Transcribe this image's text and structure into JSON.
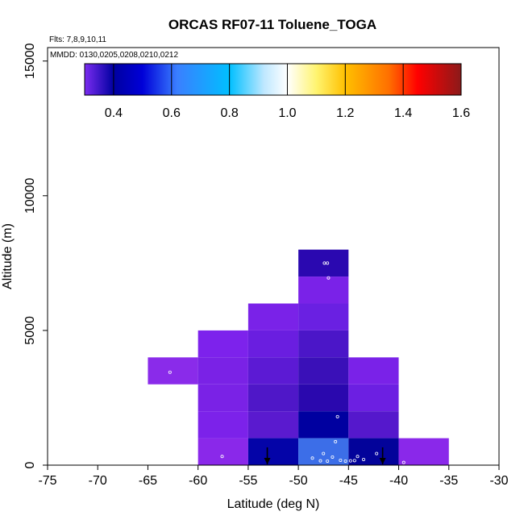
{
  "chart_data": {
    "type": "heatmap",
    "title": "ORCAS RF07-11 Toluene_TOGA",
    "info_lines": [
      "Flts: 7,8,9,10,11",
      "MMDD: 0130,0205,0208,0210,0212"
    ],
    "xlabel": "Latitude (deg N)",
    "ylabel": "Altitude (m)",
    "xlim": [
      -75,
      -30
    ],
    "ylim": [
      0,
      15500
    ],
    "x_ticks": [
      -75,
      -70,
      -65,
      -60,
      -55,
      -50,
      -45,
      -40,
      -35,
      -30
    ],
    "x_tick_labels": [
      "-75",
      "-70",
      "-65",
      "-60",
      "-55",
      "-50",
      "-45",
      "-40",
      "-35",
      "-30"
    ],
    "y_ticks": [
      0,
      5000,
      10000,
      15000
    ],
    "y_tick_labels": [
      "0",
      "5000",
      "10000",
      "15000"
    ],
    "colorbar": {
      "range": [
        0.3,
        1.6
      ],
      "ticks": [
        0.4,
        0.6,
        0.8,
        1.0,
        1.2,
        1.4,
        1.6
      ],
      "tick_labels": [
        "0.4",
        "0.6",
        "0.8",
        "1.0",
        "1.2",
        "1.4",
        "1.6"
      ],
      "stops": [
        {
          "v": 0.3,
          "color": "#7b2cf0"
        },
        {
          "v": 0.4,
          "color": "#0000a0"
        },
        {
          "v": 0.5,
          "color": "#0000d8"
        },
        {
          "v": 0.62,
          "color": "#3a7fff"
        },
        {
          "v": 0.8,
          "color": "#00bfff"
        },
        {
          "v": 0.92,
          "color": "#bfe8ff"
        },
        {
          "v": 1.0,
          "color": "#ffffff"
        },
        {
          "v": 1.1,
          "color": "#fff470"
        },
        {
          "v": 1.2,
          "color": "#ffc000"
        },
        {
          "v": 1.35,
          "color": "#ff7000"
        },
        {
          "v": 1.45,
          "color": "#ff0000"
        },
        {
          "v": 1.6,
          "color": "#8b1a1a"
        }
      ]
    },
    "grid_cell_size": {
      "dlat": 5,
      "dalt": 1000
    },
    "cells": [
      {
        "lat": -65,
        "alt": 3000,
        "color": "#8a2bea"
      },
      {
        "lat": -60,
        "alt": 4000,
        "color": "#7d22ec"
      },
      {
        "lat": -60,
        "alt": 3000,
        "color": "#7a22e6"
      },
      {
        "lat": -60,
        "alt": 2000,
        "color": "#7a22e6"
      },
      {
        "lat": -60,
        "alt": 1000,
        "color": "#7c22ea"
      },
      {
        "lat": -60,
        "alt": 0,
        "color": "#8a28ea"
      },
      {
        "lat": -55,
        "alt": 5000,
        "color": "#7a22e8"
      },
      {
        "lat": -55,
        "alt": 4000,
        "color": "#6a1ee0"
      },
      {
        "lat": -55,
        "alt": 3000,
        "color": "#5c1ad4"
      },
      {
        "lat": -55,
        "alt": 2000,
        "color": "#4f17c8"
      },
      {
        "lat": -55,
        "alt": 1000,
        "color": "#5a1acf"
      },
      {
        "lat": -55,
        "alt": 0,
        "color": "#0404a8"
      },
      {
        "lat": -50,
        "alt": 7000,
        "color": "#2a08b0"
      },
      {
        "lat": -50,
        "alt": 6000,
        "color": "#7a22e8"
      },
      {
        "lat": -50,
        "alt": 5000,
        "color": "#6a20e2"
      },
      {
        "lat": -50,
        "alt": 4000,
        "color": "#4b16c8"
      },
      {
        "lat": -50,
        "alt": 3000,
        "color": "#3a10b8"
      },
      {
        "lat": -50,
        "alt": 2000,
        "color": "#2a08ae"
      },
      {
        "lat": -50,
        "alt": 1000,
        "color": "#0000a0"
      },
      {
        "lat": -50,
        "alt": 0,
        "color": "#3c6ee8"
      },
      {
        "lat": -45,
        "alt": 3000,
        "color": "#7a22e8"
      },
      {
        "lat": -45,
        "alt": 2000,
        "color": "#6c1fe2"
      },
      {
        "lat": -45,
        "alt": 1000,
        "color": "#5518cc"
      },
      {
        "lat": -45,
        "alt": 0,
        "color": "#03039a"
      },
      {
        "lat": -40,
        "alt": 0,
        "color": "#8a28ea"
      }
    ],
    "points": [
      {
        "lat": -62.8,
        "alt": 3450
      },
      {
        "lat": -57.6,
        "alt": 320
      },
      {
        "lat": -47.4,
        "alt": 7500
      },
      {
        "lat": -47.1,
        "alt": 7500
      },
      {
        "lat": -47.0,
        "alt": 6950
      },
      {
        "lat": -46.1,
        "alt": 1800
      },
      {
        "lat": -46.3,
        "alt": 870
      },
      {
        "lat": -47.5,
        "alt": 430
      },
      {
        "lat": -48.6,
        "alt": 260
      },
      {
        "lat": -47.8,
        "alt": 160
      },
      {
        "lat": -47.1,
        "alt": 150
      },
      {
        "lat": -46.6,
        "alt": 300
      },
      {
        "lat": -45.8,
        "alt": 180
      },
      {
        "lat": -45.3,
        "alt": 150
      },
      {
        "lat": -44.8,
        "alt": 160
      },
      {
        "lat": -44.4,
        "alt": 170
      },
      {
        "lat": -44.1,
        "alt": 320
      },
      {
        "lat": -43.5,
        "alt": 210
      },
      {
        "lat": -42.2,
        "alt": 430
      },
      {
        "lat": -39.5,
        "alt": 100
      }
    ],
    "markers": [
      {
        "lat": -53.1,
        "alt_top": 660,
        "alt_bottom": 0,
        "type": "down-arrow"
      },
      {
        "lat": -41.6,
        "alt_top": 660,
        "alt_bottom": 0,
        "type": "down-arrow"
      }
    ]
  }
}
